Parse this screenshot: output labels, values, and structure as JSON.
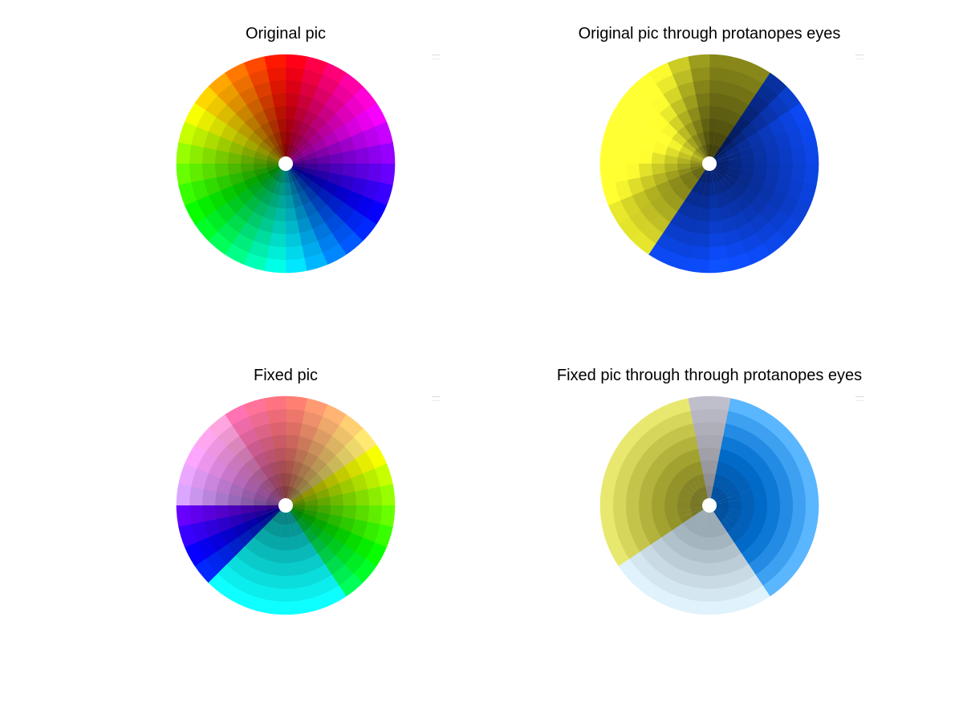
{
  "panels": [
    {
      "title": "Original pic",
      "variant": "original"
    },
    {
      "title": "Original pic through protanopes eyes",
      "variant": "protanope"
    },
    {
      "title": "Fixed pic",
      "variant": "fixed"
    },
    {
      "title": "Fixed pic through through protanopes eyes",
      "variant": "fixed_protanope"
    }
  ],
  "wheel": {
    "sectors": 32,
    "rings": 8,
    "center_color": "#ffffff"
  }
}
